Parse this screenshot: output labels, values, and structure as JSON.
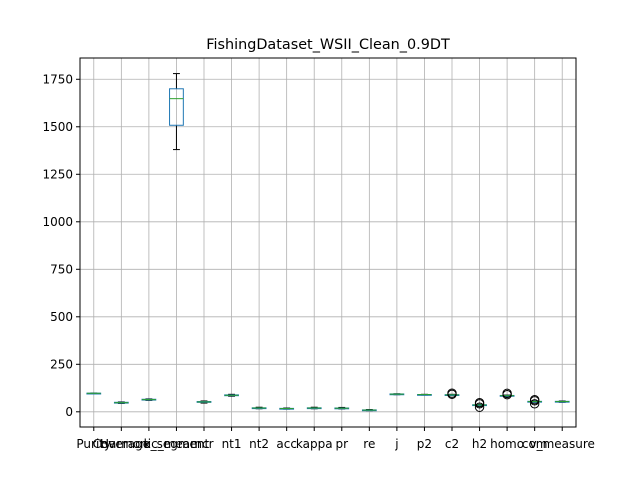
{
  "chart_data": {
    "type": "box",
    "title": "FishingDataset_WSII_Clean_0.9DT",
    "xlabel": "",
    "ylabel": "",
    "ylim": [
      -80,
      1862
    ],
    "yticks": [
      0,
      250,
      500,
      750,
      1000,
      1250,
      1500,
      1750
    ],
    "grid": true,
    "categories": [
      "Purity",
      "Coverage",
      "Harmonic_mean",
      "k_segment",
      "ncr",
      "nt1",
      "nt2",
      "acc",
      "kappa",
      "pr",
      "re",
      "j",
      "p2",
      "c2",
      "h2",
      "homo",
      "com",
      "v_measure"
    ],
    "boxes": [
      {
        "label": "Purity",
        "min": 96,
        "q1": 97,
        "median": 97.5,
        "q3": 98,
        "max": 99,
        "outliers": []
      },
      {
        "label": "Coverage",
        "min": 44,
        "q1": 47,
        "median": 48,
        "q3": 50,
        "max": 52,
        "outliers": []
      },
      {
        "label": "Harmonic_mean",
        "min": 60,
        "q1": 63,
        "median": 64,
        "q3": 66,
        "max": 68,
        "outliers": []
      },
      {
        "label": "k_segment",
        "min": 1380,
        "q1": 1508,
        "median": 1648,
        "q3": 1700,
        "max": 1780,
        "outliers": []
      },
      {
        "label": "ncr",
        "min": 46,
        "q1": 50,
        "median": 52,
        "q3": 54,
        "max": 57,
        "outliers": []
      },
      {
        "label": "nt1",
        "min": 82,
        "q1": 85,
        "median": 87,
        "q3": 89,
        "max": 92,
        "outliers": []
      },
      {
        "label": "nt2",
        "min": 16,
        "q1": 19,
        "median": 20,
        "q3": 21,
        "max": 24,
        "outliers": []
      },
      {
        "label": "acc",
        "min": 14,
        "q1": 16,
        "median": 17,
        "q3": 18,
        "max": 20,
        "outliers": []
      },
      {
        "label": "kappa",
        "min": 16,
        "q1": 19,
        "median": 20,
        "q3": 21,
        "max": 24,
        "outliers": []
      },
      {
        "label": "pr",
        "min": 15,
        "q1": 18,
        "median": 19,
        "q3": 20,
        "max": 23,
        "outliers": []
      },
      {
        "label": "re",
        "min": 6,
        "q1": 8,
        "median": 9,
        "q3": 10,
        "max": 12,
        "outliers": []
      },
      {
        "label": "j",
        "min": 90,
        "q1": 92,
        "median": 93,
        "q3": 94,
        "max": 95,
        "outliers": []
      },
      {
        "label": "p2",
        "min": 88,
        "q1": 90,
        "median": 90.5,
        "q3": 91,
        "max": 92,
        "outliers": []
      },
      {
        "label": "c2",
        "min": 86,
        "q1": 88,
        "median": 89,
        "q3": 90,
        "max": 92,
        "outliers": [
          98,
          92
        ]
      },
      {
        "label": "h2",
        "min": 32,
        "q1": 35,
        "median": 36,
        "q3": 37,
        "max": 39,
        "outliers": [
          48,
          24,
          42
        ]
      },
      {
        "label": "homo",
        "min": 80,
        "q1": 84,
        "median": 85,
        "q3": 86,
        "max": 88,
        "outliers": [
          97,
          90
        ]
      },
      {
        "label": "com",
        "min": 50,
        "q1": 53,
        "median": 54,
        "q3": 55,
        "max": 57,
        "outliers": [
          64,
          42,
          58
        ]
      },
      {
        "label": "v_measure",
        "min": 50,
        "q1": 53,
        "median": 54,
        "q3": 55,
        "max": 57,
        "outliers": []
      }
    ],
    "colors": {
      "box": "#1f77b4",
      "median": "#2ca02c",
      "grid": "#b0b0b0",
      "axis": "#000000"
    }
  }
}
